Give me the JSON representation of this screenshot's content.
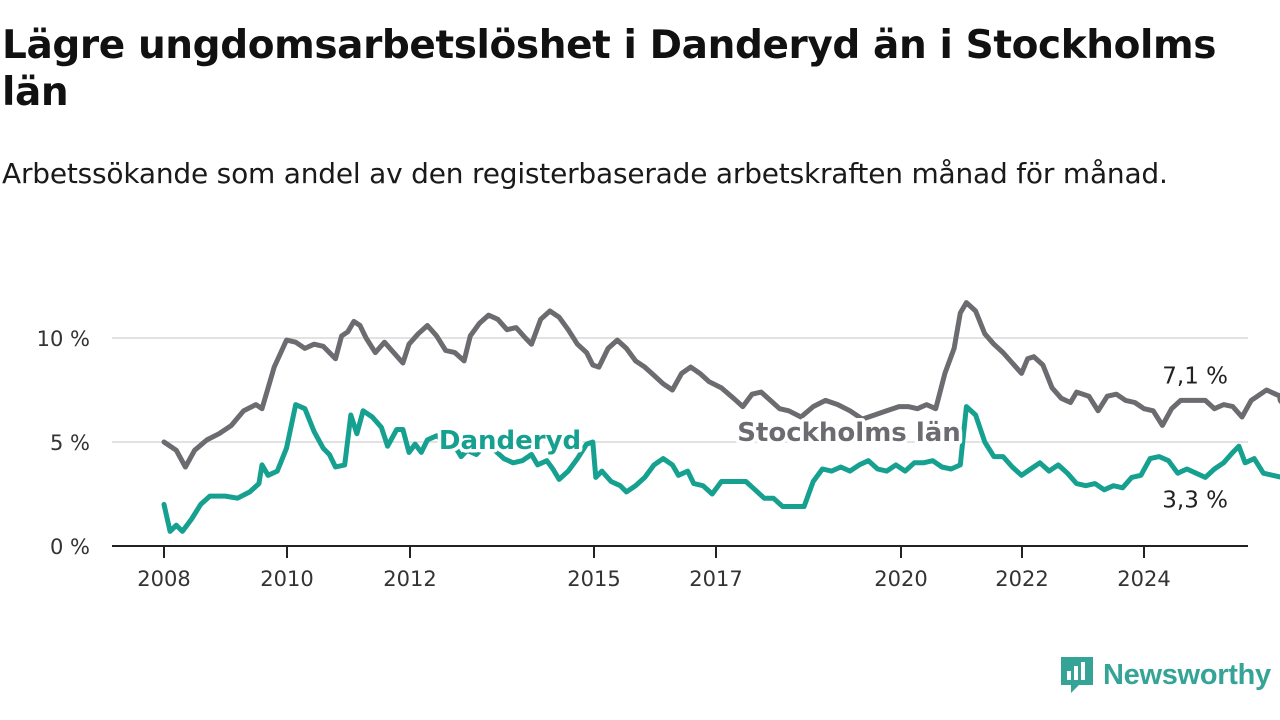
{
  "title": "Lägre ungdomsarbetslöshet i Danderyd än i Stockholms län",
  "subtitle": "Arbetssökande som andel av den registerbaserade arbetskraften månad för månad.",
  "brand": {
    "name": "Newsworthy",
    "icon": "newsworthy-chart-icon",
    "color": "#35a497"
  },
  "chart_data": {
    "type": "line",
    "x_unit": "year",
    "y_unit": "%",
    "ylim": [
      0,
      12
    ],
    "yticks": [
      0,
      5,
      10
    ],
    "ytick_labels": [
      "0 %",
      "5 %",
      "10 %"
    ],
    "xticks": [
      2008,
      2010,
      2012,
      2015,
      2017,
      2020,
      2022,
      2024
    ],
    "xtick_labels": [
      "2008",
      "2010",
      "2012",
      "2015",
      "2017",
      "2020",
      "2022",
      "2024"
    ],
    "grid": "horizontal",
    "series": [
      {
        "name": "Stockholms län",
        "color": "#6b6b70",
        "end_label": "7,1 %",
        "points": [
          [
            2008.0,
            5.0
          ],
          [
            2008.2,
            4.6
          ],
          [
            2008.35,
            3.8
          ],
          [
            2008.5,
            4.6
          ],
          [
            2008.7,
            5.1
          ],
          [
            2008.9,
            5.4
          ],
          [
            2009.1,
            5.8
          ],
          [
            2009.3,
            6.5
          ],
          [
            2009.5,
            6.8
          ],
          [
            2009.6,
            6.6
          ],
          [
            2009.8,
            8.6
          ],
          [
            2010.0,
            9.9
          ],
          [
            2010.15,
            9.8
          ],
          [
            2010.3,
            9.5
          ],
          [
            2010.45,
            9.7
          ],
          [
            2010.6,
            9.6
          ],
          [
            2010.8,
            9.0
          ],
          [
            2010.9,
            10.1
          ],
          [
            2011.0,
            10.3
          ],
          [
            2011.1,
            10.8
          ],
          [
            2011.2,
            10.6
          ],
          [
            2011.3,
            10.0
          ],
          [
            2011.45,
            9.3
          ],
          [
            2011.6,
            9.8
          ],
          [
            2011.75,
            9.3
          ],
          [
            2011.9,
            8.8
          ],
          [
            2012.0,
            9.7
          ],
          [
            2012.15,
            10.2
          ],
          [
            2012.3,
            10.6
          ],
          [
            2012.45,
            10.1
          ],
          [
            2012.6,
            9.4
          ],
          [
            2012.75,
            9.3
          ],
          [
            2012.9,
            8.9
          ],
          [
            2013.0,
            10.1
          ],
          [
            2013.15,
            10.7
          ],
          [
            2013.3,
            11.1
          ],
          [
            2013.45,
            10.9
          ],
          [
            2013.6,
            10.4
          ],
          [
            2013.75,
            10.5
          ],
          [
            2013.9,
            10.0
          ],
          [
            2014.0,
            9.7
          ],
          [
            2014.15,
            10.9
          ],
          [
            2014.3,
            11.3
          ],
          [
            2014.45,
            11.0
          ],
          [
            2014.6,
            10.4
          ],
          [
            2014.75,
            9.7
          ],
          [
            2014.9,
            9.3
          ],
          [
            2015.0,
            8.7
          ],
          [
            2015.1,
            8.6
          ],
          [
            2015.25,
            9.5
          ],
          [
            2015.4,
            9.9
          ],
          [
            2015.55,
            9.5
          ],
          [
            2015.7,
            8.9
          ],
          [
            2015.85,
            8.6
          ],
          [
            2016.0,
            8.2
          ],
          [
            2016.15,
            7.8
          ],
          [
            2016.3,
            7.5
          ],
          [
            2016.45,
            8.3
          ],
          [
            2016.6,
            8.6
          ],
          [
            2016.75,
            8.3
          ],
          [
            2016.9,
            7.9
          ],
          [
            2017.1,
            7.6
          ],
          [
            2017.3,
            7.1
          ],
          [
            2017.45,
            6.7
          ],
          [
            2017.6,
            7.3
          ],
          [
            2017.75,
            7.4
          ],
          [
            2017.9,
            7.0
          ],
          [
            2018.05,
            6.6
          ],
          [
            2018.2,
            6.5
          ],
          [
            2018.4,
            6.2
          ],
          [
            2018.6,
            6.7
          ],
          [
            2018.8,
            7.0
          ],
          [
            2019.0,
            6.8
          ],
          [
            2019.2,
            6.5
          ],
          [
            2019.4,
            6.1
          ],
          [
            2019.6,
            6.3
          ],
          [
            2019.8,
            6.5
          ],
          [
            2020.0,
            6.7
          ],
          [
            2020.15,
            6.7
          ],
          [
            2020.3,
            6.6
          ],
          [
            2020.45,
            6.8
          ],
          [
            2020.6,
            6.6
          ],
          [
            2020.75,
            8.3
          ],
          [
            2020.9,
            9.5
          ],
          [
            2021.0,
            11.2
          ],
          [
            2021.1,
            11.7
          ],
          [
            2021.25,
            11.3
          ],
          [
            2021.4,
            10.2
          ],
          [
            2021.55,
            9.7
          ],
          [
            2021.7,
            9.3
          ],
          [
            2021.85,
            8.8
          ],
          [
            2022.0,
            8.3
          ],
          [
            2022.1,
            9.0
          ],
          [
            2022.2,
            9.1
          ],
          [
            2022.35,
            8.7
          ],
          [
            2022.5,
            7.6
          ],
          [
            2022.65,
            7.1
          ],
          [
            2022.8,
            6.9
          ],
          [
            2022.9,
            7.4
          ],
          [
            2023.1,
            7.2
          ],
          [
            2023.25,
            6.5
          ],
          [
            2023.4,
            7.2
          ],
          [
            2023.55,
            7.3
          ],
          [
            2023.7,
            7.0
          ],
          [
            2023.85,
            6.9
          ],
          [
            2024.0,
            6.6
          ],
          [
            2024.15,
            6.5
          ],
          [
            2024.3,
            5.8
          ],
          [
            2024.45,
            6.6
          ],
          [
            2024.6,
            7.0
          ],
          [
            2024.75,
            7.0
          ],
          [
            2024.9,
            7.0
          ],
          [
            2025.0,
            7.0
          ],
          [
            2025.15,
            6.6
          ],
          [
            2025.3,
            6.8
          ],
          [
            2025.45,
            6.7
          ],
          [
            2025.6,
            6.2
          ],
          [
            2025.75,
            7.0
          ],
          [
            2025.9,
            7.3
          ],
          [
            2026.0,
            7.5
          ],
          [
            2026.15,
            7.3
          ],
          [
            2026.3,
            7.1
          ]
        ]
      },
      {
        "name": "Danderyd",
        "color": "#16a090",
        "end_label": "3,3 %",
        "points": [
          [
            2008.0,
            2.0
          ],
          [
            2008.1,
            0.7
          ],
          [
            2008.2,
            1.0
          ],
          [
            2008.3,
            0.7
          ],
          [
            2008.45,
            1.3
          ],
          [
            2008.6,
            2.0
          ],
          [
            2008.75,
            2.4
          ],
          [
            2009.0,
            2.4
          ],
          [
            2009.2,
            2.3
          ],
          [
            2009.4,
            2.6
          ],
          [
            2009.55,
            3.0
          ],
          [
            2009.6,
            3.9
          ],
          [
            2009.7,
            3.4
          ],
          [
            2009.85,
            3.6
          ],
          [
            2010.0,
            4.7
          ],
          [
            2010.15,
            6.8
          ],
          [
            2010.3,
            6.6
          ],
          [
            2010.45,
            5.5
          ],
          [
            2010.6,
            4.7
          ],
          [
            2010.7,
            4.4
          ],
          [
            2010.8,
            3.8
          ],
          [
            2010.95,
            3.9
          ],
          [
            2011.05,
            6.3
          ],
          [
            2011.15,
            5.4
          ],
          [
            2011.25,
            6.5
          ],
          [
            2011.4,
            6.2
          ],
          [
            2011.55,
            5.7
          ],
          [
            2011.65,
            4.8
          ],
          [
            2011.8,
            5.6
          ],
          [
            2011.9,
            5.6
          ],
          [
            2012.0,
            4.5
          ],
          [
            2012.1,
            4.9
          ],
          [
            2012.2,
            4.5
          ],
          [
            2012.3,
            5.1
          ],
          [
            2012.45,
            5.3
          ],
          [
            2012.6,
            5.0
          ],
          [
            2012.75,
            4.8
          ],
          [
            2012.85,
            4.3
          ],
          [
            2012.95,
            4.6
          ],
          [
            2013.1,
            4.4
          ],
          [
            2013.25,
            4.9
          ],
          [
            2013.4,
            4.6
          ],
          [
            2013.55,
            4.2
          ],
          [
            2013.7,
            4.0
          ],
          [
            2013.85,
            4.1
          ],
          [
            2014.0,
            4.4
          ],
          [
            2014.1,
            3.9
          ],
          [
            2014.25,
            4.1
          ],
          [
            2014.35,
            3.7
          ],
          [
            2014.45,
            3.2
          ],
          [
            2014.6,
            3.6
          ],
          [
            2014.75,
            4.2
          ],
          [
            2014.9,
            4.9
          ],
          [
            2015.0,
            5.0
          ],
          [
            2015.05,
            3.3
          ],
          [
            2015.15,
            3.6
          ],
          [
            2015.3,
            3.1
          ],
          [
            2015.45,
            2.9
          ],
          [
            2015.55,
            2.6
          ],
          [
            2015.7,
            2.9
          ],
          [
            2015.85,
            3.3
          ],
          [
            2016.0,
            3.9
          ],
          [
            2016.15,
            4.2
          ],
          [
            2016.3,
            3.9
          ],
          [
            2016.4,
            3.4
          ],
          [
            2016.55,
            3.6
          ],
          [
            2016.65,
            3.0
          ],
          [
            2016.8,
            2.9
          ],
          [
            2016.95,
            2.5
          ],
          [
            2017.1,
            3.1
          ],
          [
            2017.3,
            3.1
          ],
          [
            2017.5,
            3.1
          ],
          [
            2017.65,
            2.7
          ],
          [
            2017.8,
            2.3
          ],
          [
            2017.95,
            2.3
          ],
          [
            2018.1,
            1.9
          ],
          [
            2018.3,
            1.9
          ],
          [
            2018.45,
            1.9
          ],
          [
            2018.6,
            3.1
          ],
          [
            2018.75,
            3.7
          ],
          [
            2018.9,
            3.6
          ],
          [
            2019.05,
            3.8
          ],
          [
            2019.2,
            3.6
          ],
          [
            2019.35,
            3.9
          ],
          [
            2019.5,
            4.1
          ],
          [
            2019.65,
            3.7
          ],
          [
            2019.8,
            3.6
          ],
          [
            2019.95,
            3.9
          ],
          [
            2020.1,
            3.6
          ],
          [
            2020.25,
            4.0
          ],
          [
            2020.4,
            4.0
          ],
          [
            2020.55,
            4.1
          ],
          [
            2020.7,
            3.8
          ],
          [
            2020.85,
            3.7
          ],
          [
            2021.0,
            3.9
          ],
          [
            2021.1,
            6.7
          ],
          [
            2021.25,
            6.3
          ],
          [
            2021.4,
            5.0
          ],
          [
            2021.55,
            4.3
          ],
          [
            2021.7,
            4.3
          ],
          [
            2021.85,
            3.8
          ],
          [
            2022.0,
            3.4
          ],
          [
            2022.15,
            3.7
          ],
          [
            2022.3,
            4.0
          ],
          [
            2022.45,
            3.6
          ],
          [
            2022.6,
            3.9
          ],
          [
            2022.75,
            3.5
          ],
          [
            2022.9,
            3.0
          ],
          [
            2023.05,
            2.9
          ],
          [
            2023.2,
            3.0
          ],
          [
            2023.35,
            2.7
          ],
          [
            2023.5,
            2.9
          ],
          [
            2023.65,
            2.8
          ],
          [
            2023.8,
            3.3
          ],
          [
            2023.95,
            3.4
          ],
          [
            2024.1,
            4.2
          ],
          [
            2024.25,
            4.3
          ],
          [
            2024.4,
            4.1
          ],
          [
            2024.55,
            3.5
          ],
          [
            2024.7,
            3.7
          ],
          [
            2024.85,
            3.5
          ],
          [
            2025.0,
            3.3
          ],
          [
            2025.15,
            3.7
          ],
          [
            2025.3,
            4.0
          ],
          [
            2025.45,
            4.5
          ],
          [
            2025.55,
            4.8
          ],
          [
            2025.65,
            4.0
          ],
          [
            2025.8,
            4.2
          ],
          [
            2025.95,
            3.5
          ],
          [
            2026.1,
            3.4
          ],
          [
            2026.25,
            3.3
          ],
          [
            2026.4,
            3.3
          ],
          [
            2026.55,
            3.5
          ],
          [
            2026.7,
            3.3
          ]
        ]
      }
    ]
  }
}
